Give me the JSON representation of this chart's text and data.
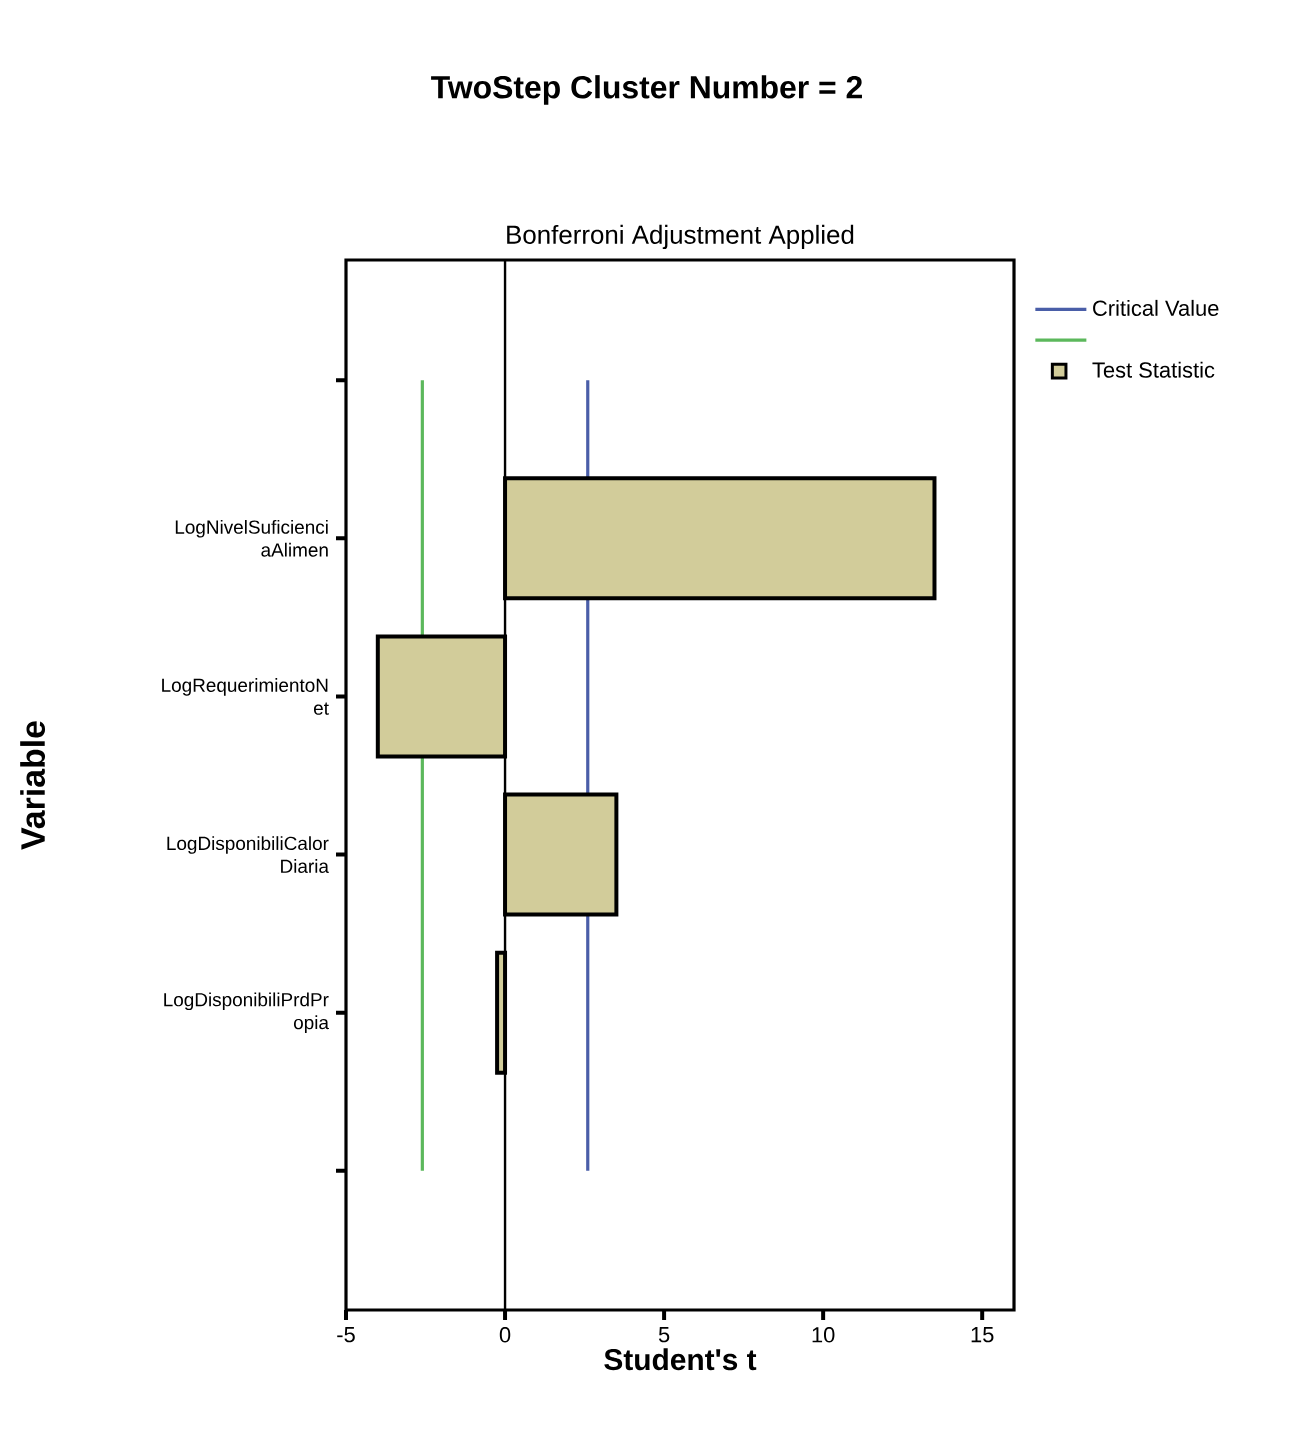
{
  "chart_data": {
    "type": "bar",
    "orientation": "horizontal",
    "title": "TwoStep Cluster Number = 2",
    "subtitle": "Bonferroni Adjustment Applied",
    "xlabel": "Student's t",
    "ylabel": "Variable",
    "categories": [
      null,
      "LogNivelSuficienci aAlimen",
      "LogRequerimientoN et",
      "LogDisponibiliCalor Diaria",
      "LogDisponibiliPrdPr opia",
      null
    ],
    "series": [
      {
        "name": "Test Statistic",
        "color": "#d2cc9a",
        "values": [
          null,
          13.5,
          -4.0,
          3.5,
          -0.25,
          null
        ]
      }
    ],
    "ref_lines": [
      {
        "axis": "x",
        "value": 2.6,
        "label": "Critical Value",
        "color": "#4a5ea8"
      },
      {
        "axis": "x",
        "value": -2.6,
        "color": "#5cb85c"
      }
    ],
    "xlim": [
      -5,
      16
    ],
    "xticks": [
      -5,
      0,
      5,
      10,
      15
    ],
    "legend": "top right"
  }
}
